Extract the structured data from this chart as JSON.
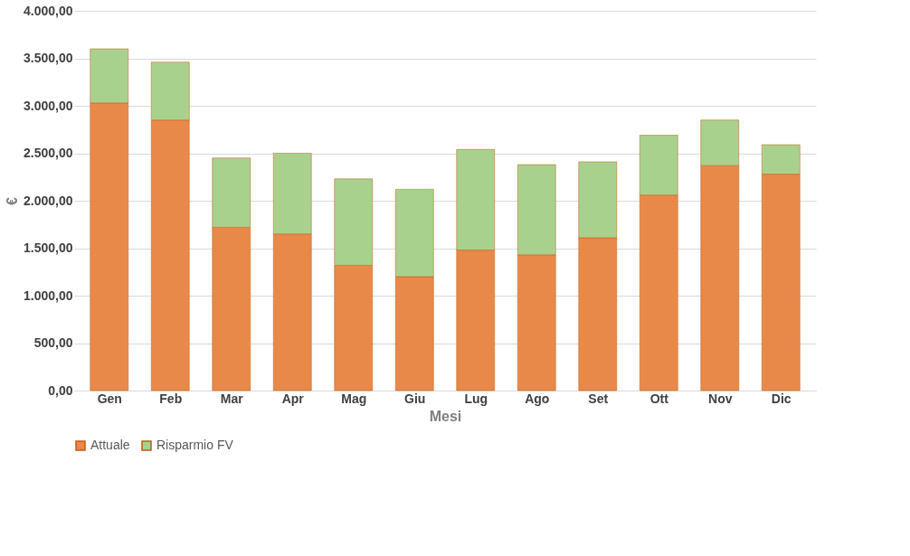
{
  "chart_data": {
    "type": "bar",
    "stacked": true,
    "xlabel": "Mesi",
    "ylabel": "€",
    "categories": [
      "Gen",
      "Feb",
      "Mar",
      "Apr",
      "Mag",
      "Giu",
      "Lug",
      "Ago",
      "Set",
      "Ott",
      "Nov",
      "Dic"
    ],
    "series": [
      {
        "name": "Attuale",
        "color": "#e8894a",
        "values": [
          3030,
          2850,
          1720,
          1650,
          1320,
          1200,
          1480,
          1430,
          1610,
          2060,
          2370,
          2280
        ]
      },
      {
        "name": "Risparmio FV",
        "color": "#a9d18e",
        "values": [
          570,
          610,
          730,
          850,
          910,
          920,
          1060,
          950,
          800,
          630,
          480,
          310
        ]
      }
    ],
    "ylim": [
      0,
      4000
    ],
    "yticks": [
      {
        "value": 0,
        "label": "0,00"
      },
      {
        "value": 500,
        "label": "500,00"
      },
      {
        "value": 1000,
        "label": "1.000,00"
      },
      {
        "value": 1500,
        "label": "1.500,00"
      },
      {
        "value": 2000,
        "label": "2.000,00"
      },
      {
        "value": 2500,
        "label": "2.500,00"
      },
      {
        "value": 3000,
        "label": "3.000,00"
      },
      {
        "value": 3500,
        "label": "3.500,00"
      },
      {
        "value": 4000,
        "label": "4.000,00"
      }
    ],
    "grid": "y",
    "legend": "bottom"
  }
}
